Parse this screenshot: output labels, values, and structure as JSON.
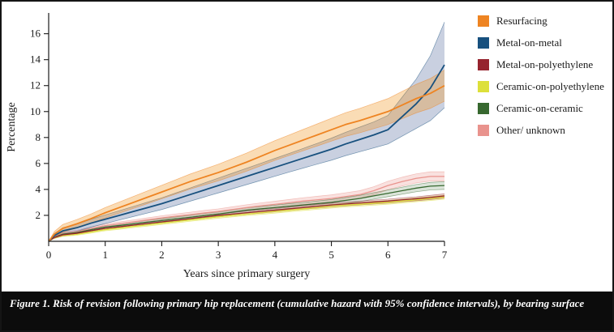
{
  "figure": {
    "caption": "Figure 1. Risk of revision following primary hip replacement (cumulative hazard with 95% confidence intervals), by bearing surface"
  },
  "chart_data": {
    "type": "line",
    "title": "",
    "xlabel": "Years since primary surgery",
    "ylabel": "Percentage",
    "xlim": [
      0,
      7
    ],
    "ylim": [
      0,
      17.6
    ],
    "x_ticks": [
      0,
      1,
      2,
      3,
      4,
      5,
      6,
      7
    ],
    "y_ticks": [
      2,
      4,
      6,
      8,
      10,
      12,
      14,
      16
    ],
    "legend_position": "top-right",
    "grid": false,
    "x": [
      0,
      0.1,
      0.25,
      0.5,
      0.75,
      1,
      1.25,
      1.5,
      1.75,
      2,
      2.25,
      2.5,
      2.75,
      3,
      3.25,
      3.5,
      3.75,
      4,
      4.25,
      4.5,
      4.75,
      5,
      5.25,
      5.5,
      5.75,
      6,
      6.25,
      6.5,
      6.75,
      7
    ],
    "series": [
      {
        "name": "Resurfacing",
        "color": "#EE8422",
        "band_color": "#F0941F",
        "band_opacity": 0.33,
        "line_width": 1.8,
        "values": [
          0,
          0.55,
          1.0,
          1.35,
          1.75,
          2.2,
          2.6,
          3.0,
          3.4,
          3.8,
          4.2,
          4.6,
          4.95,
          5.3,
          5.7,
          6.1,
          6.55,
          7.0,
          7.4,
          7.8,
          8.2,
          8.6,
          9.0,
          9.3,
          9.65,
          10.0,
          10.5,
          11.0,
          11.4,
          12.0
        ],
        "ci_delta": [
          0,
          0.2,
          0.3,
          0.33,
          0.36,
          0.4,
          0.43,
          0.46,
          0.49,
          0.52,
          0.55,
          0.58,
          0.61,
          0.64,
          0.67,
          0.7,
          0.73,
          0.76,
          0.79,
          0.82,
          0.85,
          0.88,
          0.91,
          0.94,
          0.97,
          1.0,
          1.05,
          1.1,
          1.15,
          1.2
        ]
      },
      {
        "name": "Metal-on-metal",
        "color": "#17507E",
        "band_color": "#93A2C2",
        "band_opacity": 0.5,
        "line_width": 1.8,
        "values": [
          0,
          0.45,
          0.8,
          1.05,
          1.4,
          1.7,
          2.0,
          2.3,
          2.6,
          2.9,
          3.25,
          3.6,
          3.95,
          4.3,
          4.65,
          5.0,
          5.35,
          5.7,
          6.05,
          6.4,
          6.75,
          7.1,
          7.5,
          7.85,
          8.2,
          8.6,
          9.6,
          10.6,
          11.8,
          13.6
        ],
        "ci_delta": [
          0,
          0.15,
          0.25,
          0.27,
          0.3,
          0.33,
          0.36,
          0.39,
          0.42,
          0.45,
          0.48,
          0.51,
          0.54,
          0.57,
          0.6,
          0.63,
          0.66,
          0.69,
          0.72,
          0.76,
          0.8,
          0.85,
          0.9,
          0.95,
          1.0,
          1.1,
          1.5,
          1.9,
          2.5,
          3.3
        ]
      },
      {
        "name": "Metal-on-polyethylene",
        "color": "#96232E",
        "band_color": "#96232E",
        "band_opacity": 0.18,
        "line_width": 1.3,
        "values": [
          0,
          0.3,
          0.5,
          0.62,
          0.82,
          1.0,
          1.12,
          1.25,
          1.38,
          1.5,
          1.62,
          1.75,
          1.88,
          2.0,
          2.1,
          2.2,
          2.3,
          2.4,
          2.5,
          2.6,
          2.7,
          2.8,
          2.88,
          2.95,
          3.03,
          3.1,
          3.2,
          3.28,
          3.38,
          3.5
        ],
        "ci_delta": [
          0,
          0.06,
          0.08,
          0.08,
          0.09,
          0.09,
          0.1,
          0.1,
          0.1,
          0.11,
          0.11,
          0.11,
          0.12,
          0.12,
          0.12,
          0.12,
          0.13,
          0.13,
          0.13,
          0.13,
          0.14,
          0.14,
          0.14,
          0.14,
          0.15,
          0.15,
          0.15,
          0.15,
          0.16,
          0.16
        ]
      },
      {
        "name": "Ceramic-on-polyethylene",
        "color": "#DDE03A",
        "band_color": "#DDE03A",
        "band_opacity": 0.3,
        "line_width": 1.3,
        "values": [
          0,
          0.28,
          0.45,
          0.55,
          0.72,
          0.9,
          1.02,
          1.15,
          1.27,
          1.4,
          1.52,
          1.65,
          1.77,
          1.9,
          2.0,
          2.1,
          2.2,
          2.3,
          2.4,
          2.5,
          2.6,
          2.7,
          2.78,
          2.85,
          2.93,
          3.0,
          3.1,
          3.2,
          3.3,
          3.4
        ],
        "ci_delta": [
          0,
          0.06,
          0.08,
          0.08,
          0.09,
          0.09,
          0.1,
          0.1,
          0.1,
          0.11,
          0.11,
          0.11,
          0.12,
          0.12,
          0.12,
          0.12,
          0.13,
          0.13,
          0.13,
          0.13,
          0.14,
          0.14,
          0.14,
          0.14,
          0.15,
          0.15,
          0.15,
          0.15,
          0.16,
          0.16
        ]
      },
      {
        "name": "Ceramic-on-ceramic",
        "color": "#37682F",
        "band_color": "#37682F",
        "band_opacity": 0.18,
        "line_width": 1.3,
        "values": [
          0,
          0.32,
          0.55,
          0.68,
          0.9,
          1.1,
          1.22,
          1.35,
          1.48,
          1.6,
          1.73,
          1.85,
          1.98,
          2.1,
          2.25,
          2.4,
          2.5,
          2.6,
          2.7,
          2.8,
          2.9,
          3.0,
          3.15,
          3.3,
          3.5,
          3.7,
          3.9,
          4.1,
          4.25,
          4.3
        ],
        "ci_delta": [
          0,
          0.08,
          0.1,
          0.11,
          0.12,
          0.12,
          0.13,
          0.13,
          0.14,
          0.14,
          0.15,
          0.15,
          0.16,
          0.16,
          0.17,
          0.18,
          0.18,
          0.19,
          0.2,
          0.2,
          0.21,
          0.22,
          0.23,
          0.24,
          0.25,
          0.26,
          0.27,
          0.28,
          0.29,
          0.3
        ]
      },
      {
        "name": "Other/ unknown",
        "color": "#E9938D",
        "band_color": "#E9938D",
        "band_opacity": 0.28,
        "line_width": 1.3,
        "values": [
          0,
          0.35,
          0.6,
          0.75,
          1.0,
          1.2,
          1.35,
          1.5,
          1.65,
          1.8,
          1.93,
          2.05,
          2.18,
          2.3,
          2.45,
          2.6,
          2.73,
          2.85,
          2.97,
          3.1,
          3.2,
          3.3,
          3.45,
          3.6,
          3.9,
          4.3,
          4.6,
          4.85,
          5.0,
          5.0
        ],
        "ci_delta": [
          0,
          0.08,
          0.1,
          0.11,
          0.12,
          0.13,
          0.14,
          0.15,
          0.16,
          0.17,
          0.18,
          0.19,
          0.2,
          0.2,
          0.21,
          0.22,
          0.23,
          0.24,
          0.25,
          0.26,
          0.27,
          0.28,
          0.29,
          0.3,
          0.31,
          0.33,
          0.34,
          0.35,
          0.36,
          0.36
        ]
      }
    ]
  }
}
